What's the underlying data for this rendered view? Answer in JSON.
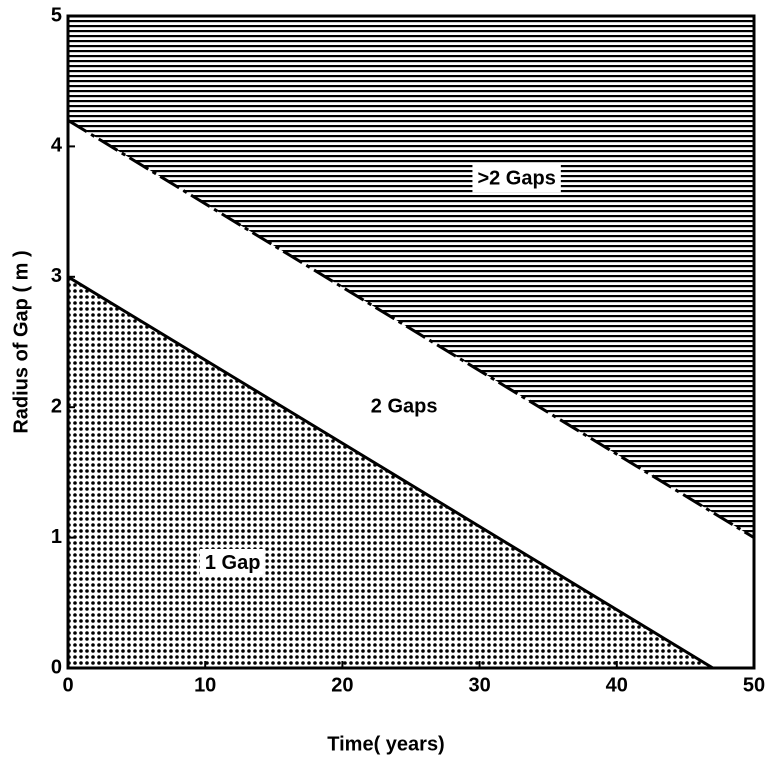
{
  "chart_data": {
    "type": "area",
    "xlabel": "Time( years)",
    "ylabel": "Radius of Gap ( m )",
    "series": [
      {
        "x": [
          0,
          47
        ],
        "values": [
          3,
          0
        ],
        "color": "#000000",
        "line": "solid",
        "fill": "below",
        "pattern": "dots"
      },
      {
        "x": [
          0,
          50
        ],
        "values": [
          4.2,
          1
        ],
        "color": "#000000",
        "line": "dash-dot",
        "fill": "above",
        "pattern": "hlines"
      }
    ],
    "annotations": [
      "1 Gap",
      "2 Gaps",
      ">2 Gaps"
    ],
    "xlim": [
      0,
      50
    ],
    "xticks": [
      0,
      10,
      20,
      30,
      40,
      50
    ],
    "ylim": [
      0,
      5
    ],
    "yticks": [
      0,
      1,
      2,
      3,
      4,
      5
    ]
  }
}
